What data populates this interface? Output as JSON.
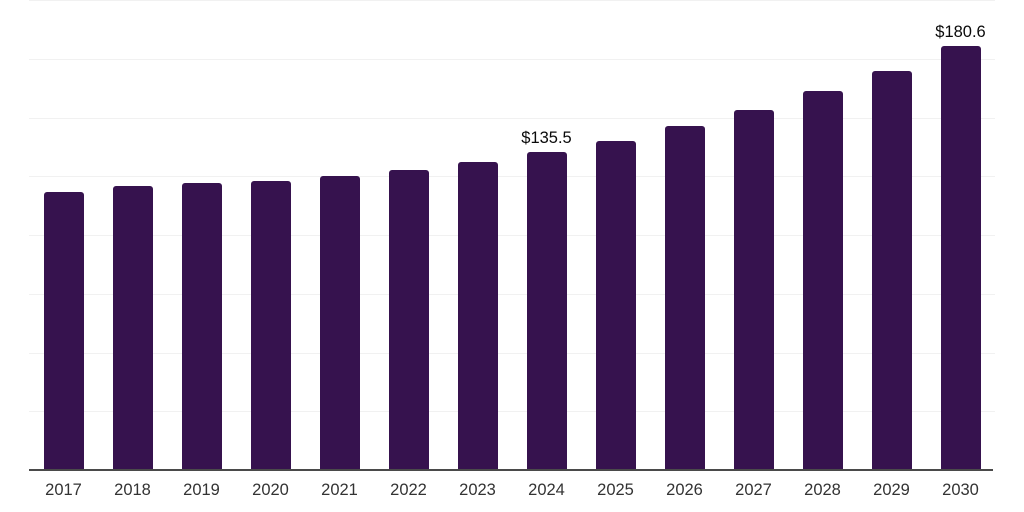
{
  "chart_data": {
    "type": "bar",
    "title": "",
    "xlabel": "",
    "ylabel": "",
    "categories": [
      "2017",
      "2018",
      "2019",
      "2020",
      "2021",
      "2022",
      "2023",
      "2024",
      "2025",
      "2026",
      "2027",
      "2028",
      "2029",
      "2030"
    ],
    "values": [
      118.4,
      121.0,
      122.3,
      123.1,
      125.3,
      127.8,
      131.2,
      135.5,
      140.2,
      146.6,
      153.4,
      161.1,
      170.0,
      180.6
    ],
    "data_labels": [
      "",
      "",
      "",
      "",
      "",
      "",
      "",
      "$135.5",
      "",
      "",
      "",
      "",
      "",
      "$180.6"
    ],
    "ylim": [
      0,
      200
    ],
    "gridline_step": 25,
    "grid": true,
    "y_tick_labels_visible": false,
    "legend_position": "none",
    "colors": {
      "bar": "#36124E",
      "gridline": "#f1f1f1",
      "axis_line": "#4a4a4a",
      "x_label": "#333333",
      "value_label": "#0a0a0a",
      "background": "#ffffff"
    }
  }
}
